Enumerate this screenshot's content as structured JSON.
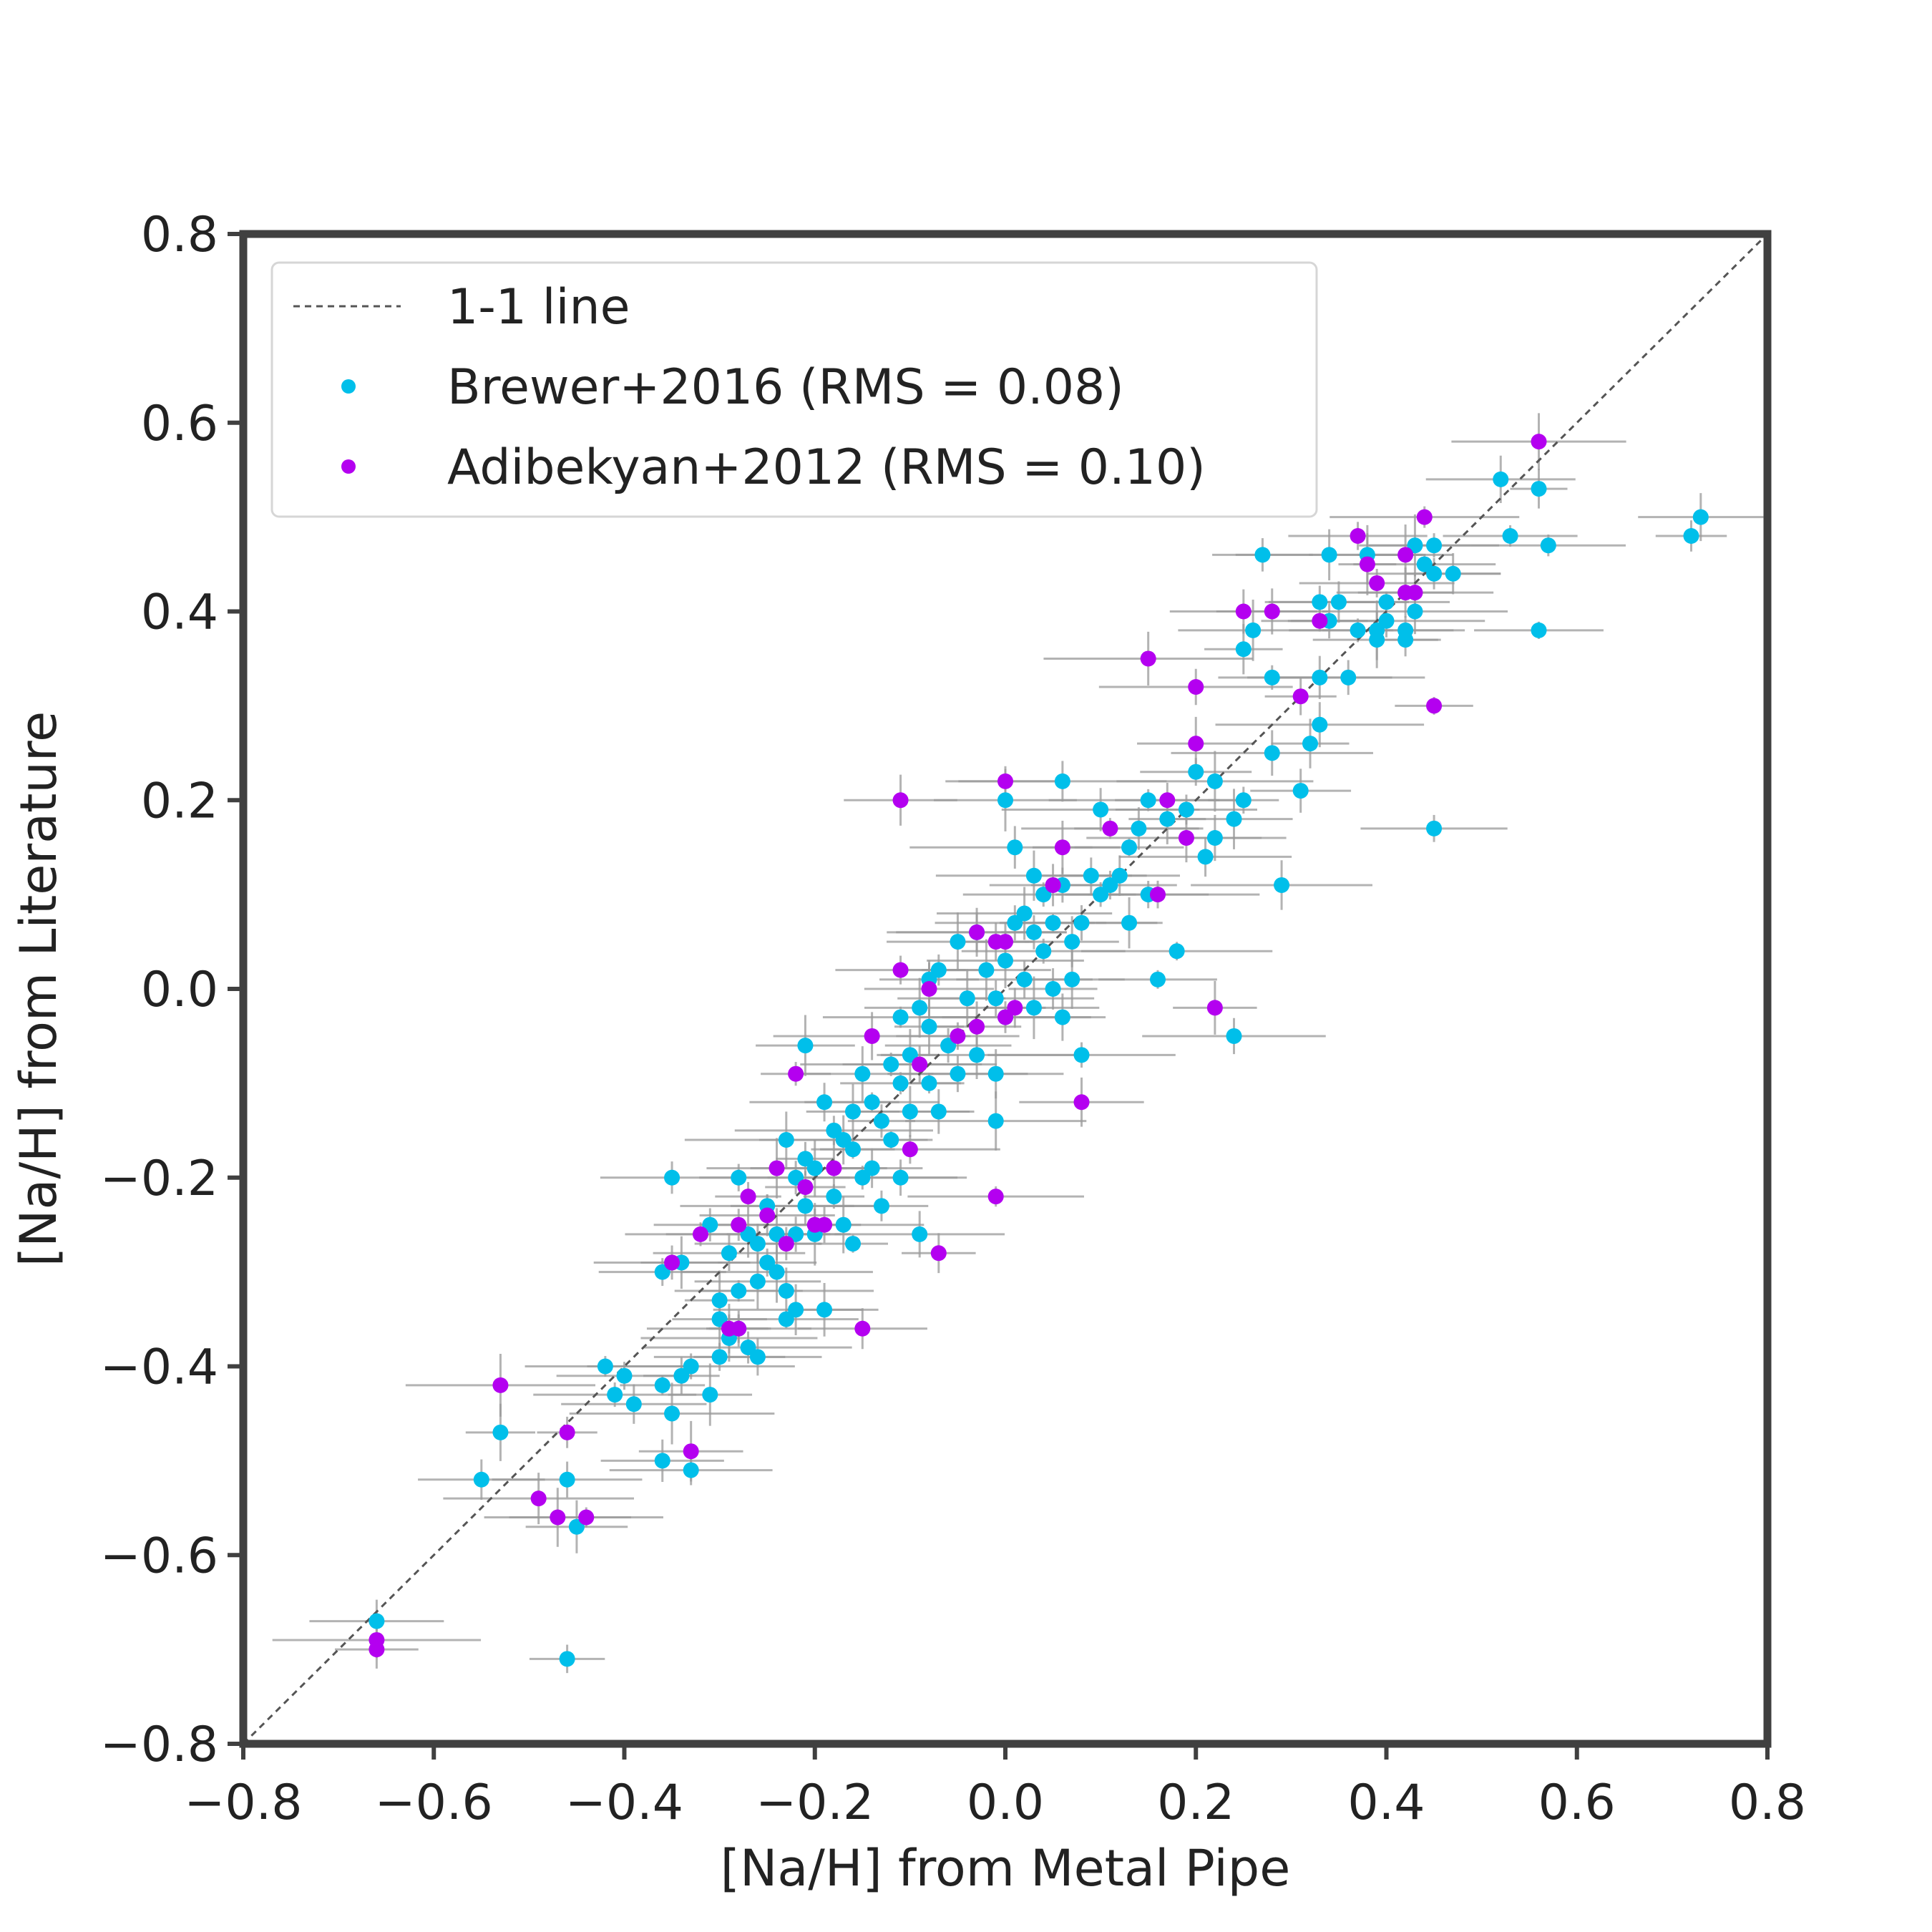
{
  "chart_data": {
    "type": "scatter",
    "title": "",
    "xlabel": "[Na/H] from Metal Pipe",
    "ylabel": "[Na/H] from Literature",
    "xlim": [
      -0.8,
      0.8
    ],
    "ylim": [
      -0.8,
      0.8
    ],
    "xticks": [
      -0.8,
      -0.6,
      -0.4,
      -0.2,
      0.0,
      0.2,
      0.4,
      0.6,
      0.8
    ],
    "yticks": [
      -0.8,
      -0.6,
      -0.4,
      -0.2,
      0.0,
      0.2,
      0.4,
      0.6,
      0.8
    ],
    "xtick_labels": [
      "−0.8",
      "−0.6",
      "−0.4",
      "−0.2",
      "0.0",
      "0.2",
      "0.4",
      "0.6",
      "0.8"
    ],
    "ytick_labels": [
      "−0.8",
      "−0.6",
      "−0.4",
      "−0.2",
      "0.0",
      "0.2",
      "0.4",
      "0.6",
      "0.8"
    ],
    "grid": false,
    "legend_position": "upper-left",
    "reference_line": {
      "label": "1-1 line",
      "from": [
        -0.8,
        -0.8
      ],
      "to": [
        0.8,
        0.8
      ],
      "color": "#555555",
      "style": "dashed"
    },
    "errorbar_color": "#9a9a9a",
    "series": [
      {
        "name": "Brewer+2016 (RMS = 0.08)",
        "color": "#00bfea",
        "points": [
          [
            -0.66,
            -0.67
          ],
          [
            -0.46,
            -0.71
          ],
          [
            -0.55,
            -0.52
          ],
          [
            -0.53,
            -0.47
          ],
          [
            -0.46,
            -0.52
          ],
          [
            -0.45,
            -0.57
          ],
          [
            -0.42,
            -0.4
          ],
          [
            -0.4,
            -0.41
          ],
          [
            -0.41,
            -0.43
          ],
          [
            -0.39,
            -0.44
          ],
          [
            -0.36,
            -0.42
          ],
          [
            -0.35,
            -0.45
          ],
          [
            -0.34,
            -0.41
          ],
          [
            -0.33,
            -0.4
          ],
          [
            -0.36,
            -0.5
          ],
          [
            -0.33,
            -0.51
          ],
          [
            -0.31,
            -0.43
          ],
          [
            -0.36,
            -0.3
          ],
          [
            -0.35,
            -0.2
          ],
          [
            -0.34,
            -0.29
          ],
          [
            -0.31,
            -0.25
          ],
          [
            -0.3,
            -0.33
          ],
          [
            -0.3,
            -0.35
          ],
          [
            -0.3,
            -0.39
          ],
          [
            -0.29,
            -0.28
          ],
          [
            -0.29,
            -0.37
          ],
          [
            -0.28,
            -0.2
          ],
          [
            -0.28,
            -0.32
          ],
          [
            -0.28,
            -0.36
          ],
          [
            -0.27,
            -0.26
          ],
          [
            -0.27,
            -0.38
          ],
          [
            -0.26,
            -0.27
          ],
          [
            -0.26,
            -0.31
          ],
          [
            -0.26,
            -0.39
          ],
          [
            -0.25,
            -0.29
          ],
          [
            -0.25,
            -0.23
          ],
          [
            -0.24,
            -0.26
          ],
          [
            -0.24,
            -0.3
          ],
          [
            -0.23,
            -0.16
          ],
          [
            -0.23,
            -0.32
          ],
          [
            -0.23,
            -0.35
          ],
          [
            -0.22,
            -0.2
          ],
          [
            -0.22,
            -0.26
          ],
          [
            -0.22,
            -0.34
          ],
          [
            -0.21,
            -0.06
          ],
          [
            -0.21,
            -0.18
          ],
          [
            -0.21,
            -0.23
          ],
          [
            -0.2,
            -0.26
          ],
          [
            -0.2,
            -0.19
          ],
          [
            -0.19,
            -0.12
          ],
          [
            -0.19,
            -0.34
          ],
          [
            -0.18,
            -0.15
          ],
          [
            -0.18,
            -0.22
          ],
          [
            -0.17,
            -0.16
          ],
          [
            -0.17,
            -0.25
          ],
          [
            -0.16,
            -0.13
          ],
          [
            -0.16,
            -0.17
          ],
          [
            -0.16,
            -0.27
          ],
          [
            -0.15,
            -0.09
          ],
          [
            -0.15,
            -0.2
          ],
          [
            -0.14,
            -0.12
          ],
          [
            -0.14,
            -0.19
          ],
          [
            -0.13,
            -0.14
          ],
          [
            -0.13,
            -0.23
          ],
          [
            -0.12,
            -0.08
          ],
          [
            -0.12,
            -0.16
          ],
          [
            -0.11,
            -0.03
          ],
          [
            -0.11,
            -0.1
          ],
          [
            -0.11,
            -0.2
          ],
          [
            -0.1,
            -0.07
          ],
          [
            -0.1,
            -0.13
          ],
          [
            -0.09,
            -0.02
          ],
          [
            -0.09,
            -0.26
          ],
          [
            -0.08,
            0.01
          ],
          [
            -0.08,
            -0.04
          ],
          [
            -0.08,
            -0.1
          ],
          [
            -0.07,
            0.02
          ],
          [
            -0.07,
            -0.13
          ],
          [
            -0.06,
            -0.06
          ],
          [
            -0.05,
            0.05
          ],
          [
            -0.05,
            -0.09
          ],
          [
            -0.04,
            -0.01
          ],
          [
            -0.03,
            0.06
          ],
          [
            -0.03,
            -0.07
          ],
          [
            -0.02,
            0.02
          ],
          [
            -0.01,
            -0.01
          ],
          [
            -0.01,
            -0.09
          ],
          [
            -0.01,
            -0.14
          ],
          [
            0.0,
            0.2
          ],
          [
            0.0,
            0.03
          ],
          [
            0.0,
            -0.03
          ],
          [
            0.01,
            0.15
          ],
          [
            0.01,
            0.07
          ],
          [
            0.02,
            0.08
          ],
          [
            0.02,
            0.01
          ],
          [
            0.03,
            0.12
          ],
          [
            0.03,
            0.06
          ],
          [
            0.03,
            -0.02
          ],
          [
            0.04,
            0.1
          ],
          [
            0.04,
            0.04
          ],
          [
            0.05,
            0.0
          ],
          [
            0.05,
            0.07
          ],
          [
            0.06,
            0.22
          ],
          [
            0.06,
            0.11
          ],
          [
            0.06,
            -0.03
          ],
          [
            0.07,
            0.05
          ],
          [
            0.07,
            0.01
          ],
          [
            0.08,
            0.07
          ],
          [
            0.08,
            -0.07
          ],
          [
            0.09,
            0.12
          ],
          [
            0.1,
            0.19
          ],
          [
            0.1,
            0.1
          ],
          [
            0.11,
            0.11
          ],
          [
            0.12,
            0.12
          ],
          [
            0.13,
            0.15
          ],
          [
            0.13,
            0.07
          ],
          [
            0.14,
            0.17
          ],
          [
            0.15,
            0.2
          ],
          [
            0.15,
            0.1
          ],
          [
            0.16,
            0.01
          ],
          [
            0.17,
            0.18
          ],
          [
            0.18,
            0.04
          ],
          [
            0.19,
            0.19
          ],
          [
            0.2,
            0.23
          ],
          [
            0.21,
            0.14
          ],
          [
            0.22,
            0.16
          ],
          [
            0.22,
            0.22
          ],
          [
            0.24,
            0.18
          ],
          [
            0.24,
            -0.05
          ],
          [
            0.25,
            0.2
          ],
          [
            0.25,
            0.36
          ],
          [
            0.26,
            0.38
          ],
          [
            0.27,
            0.46
          ],
          [
            0.28,
            0.33
          ],
          [
            0.28,
            0.25
          ],
          [
            0.29,
            0.11
          ],
          [
            0.31,
            0.21
          ],
          [
            0.32,
            0.26
          ],
          [
            0.33,
            0.28
          ],
          [
            0.33,
            0.41
          ],
          [
            0.33,
            0.33
          ],
          [
            0.34,
            0.39
          ],
          [
            0.34,
            0.46
          ],
          [
            0.35,
            0.41
          ],
          [
            0.36,
            0.33
          ],
          [
            0.37,
            0.38
          ],
          [
            0.38,
            0.46
          ],
          [
            0.39,
            0.38
          ],
          [
            0.39,
            0.37
          ],
          [
            0.4,
            0.41
          ],
          [
            0.4,
            0.39
          ],
          [
            0.42,
            0.38
          ],
          [
            0.42,
            0.37
          ],
          [
            0.43,
            0.47
          ],
          [
            0.43,
            0.4
          ],
          [
            0.44,
            0.45
          ],
          [
            0.45,
            0.47
          ],
          [
            0.45,
            0.44
          ],
          [
            0.47,
            0.44
          ],
          [
            0.45,
            0.17
          ],
          [
            0.52,
            0.54
          ],
          [
            0.53,
            0.48
          ],
          [
            0.56,
            0.53
          ],
          [
            0.56,
            0.38
          ],
          [
            0.57,
            0.47
          ],
          [
            0.72,
            0.48
          ],
          [
            0.73,
            0.5
          ]
        ]
      },
      {
        "name": "Adibekyan+2012 (RMS = 0.10)",
        "color": "#b400f0",
        "points": [
          [
            -0.66,
            -0.69
          ],
          [
            -0.66,
            -0.7
          ],
          [
            -0.53,
            -0.42
          ],
          [
            -0.49,
            -0.54
          ],
          [
            -0.47,
            -0.56
          ],
          [
            -0.46,
            -0.47
          ],
          [
            -0.44,
            -0.56
          ],
          [
            -0.35,
            -0.29
          ],
          [
            -0.33,
            -0.49
          ],
          [
            -0.32,
            -0.26
          ],
          [
            -0.29,
            -0.36
          ],
          [
            -0.28,
            -0.36
          ],
          [
            -0.28,
            -0.25
          ],
          [
            -0.27,
            -0.22
          ],
          [
            -0.25,
            -0.24
          ],
          [
            -0.24,
            -0.19
          ],
          [
            -0.23,
            -0.27
          ],
          [
            -0.22,
            -0.09
          ],
          [
            -0.21,
            -0.21
          ],
          [
            -0.2,
            -0.25
          ],
          [
            -0.19,
            -0.25
          ],
          [
            -0.18,
            -0.19
          ],
          [
            -0.15,
            -0.36
          ],
          [
            -0.14,
            -0.05
          ],
          [
            -0.11,
            0.2
          ],
          [
            -0.11,
            0.02
          ],
          [
            -0.1,
            -0.17
          ],
          [
            -0.09,
            -0.08
          ],
          [
            -0.08,
            0.0
          ],
          [
            -0.07,
            -0.28
          ],
          [
            -0.05,
            -0.05
          ],
          [
            -0.03,
            0.06
          ],
          [
            -0.03,
            -0.04
          ],
          [
            -0.01,
            0.05
          ],
          [
            -0.01,
            -0.22
          ],
          [
            0.0,
            0.22
          ],
          [
            0.0,
            0.05
          ],
          [
            0.0,
            -0.03
          ],
          [
            0.01,
            -0.02
          ],
          [
            0.05,
            0.11
          ],
          [
            0.06,
            0.15
          ],
          [
            0.08,
            -0.12
          ],
          [
            0.11,
            0.17
          ],
          [
            0.15,
            0.35
          ],
          [
            0.16,
            0.1
          ],
          [
            0.17,
            0.2
          ],
          [
            0.19,
            0.16
          ],
          [
            0.2,
            0.32
          ],
          [
            0.2,
            0.26
          ],
          [
            0.22,
            -0.02
          ],
          [
            0.25,
            0.4
          ],
          [
            0.28,
            0.4
          ],
          [
            0.31,
            0.31
          ],
          [
            0.33,
            0.39
          ],
          [
            0.37,
            0.48
          ],
          [
            0.38,
            0.45
          ],
          [
            0.39,
            0.43
          ],
          [
            0.42,
            0.46
          ],
          [
            0.42,
            0.42
          ],
          [
            0.43,
            0.42
          ],
          [
            0.44,
            0.5
          ],
          [
            0.45,
            0.3
          ],
          [
            0.56,
            0.58
          ]
        ]
      }
    ]
  }
}
